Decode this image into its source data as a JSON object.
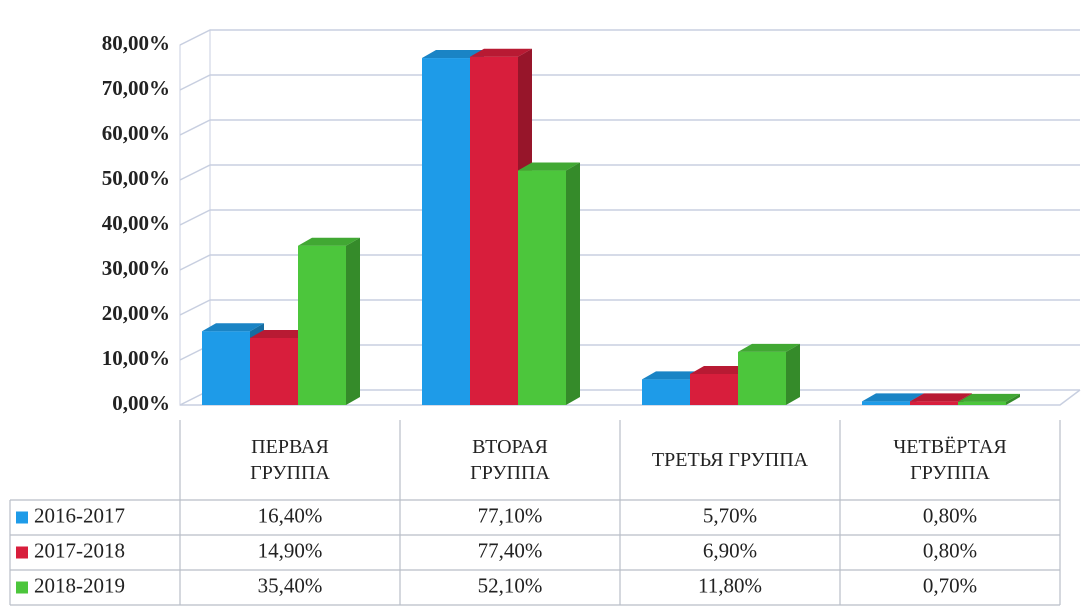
{
  "chart_data": {
    "type": "bar3d",
    "categories": [
      "ПЕРВАЯ ГРУППА",
      "ВТОРАЯ ГРУППА",
      "ТРЕТЬЯ ГРУППА",
      "ЧЕТВЁРТАЯ ГРУППА"
    ],
    "series": [
      {
        "name": "2016-2017",
        "color": "#1e9be8",
        "values": [
          16.4,
          77.1,
          5.7,
          0.8
        ],
        "value_labels": [
          "16,40%",
          "77,10%",
          "5,70%",
          "0,80%"
        ]
      },
      {
        "name": "2017-2018",
        "color": "#d81e3c",
        "values": [
          14.9,
          77.4,
          6.9,
          0.8
        ],
        "value_labels": [
          "14,90%",
          "77,40%",
          "6,90%",
          "0,80%"
        ]
      },
      {
        "name": "2018-2019",
        "color": "#4cc63c",
        "values": [
          35.4,
          52.1,
          11.8,
          0.7
        ],
        "value_labels": [
          "35,40%",
          "52,10%",
          "11,80%",
          "0,70%"
        ]
      }
    ],
    "ylim": [
      0,
      80
    ],
    "yticks": [
      {
        "value": 0,
        "label": "0,00%"
      },
      {
        "value": 10,
        "label": "10,00%"
      },
      {
        "value": 20,
        "label": "20,00%"
      },
      {
        "value": 30,
        "label": "30,00%"
      },
      {
        "value": 40,
        "label": "40,00%"
      },
      {
        "value": 50,
        "label": "50,00%"
      },
      {
        "value": 60,
        "label": "60,00%"
      },
      {
        "value": 70,
        "label": "70,00%"
      },
      {
        "value": 80,
        "label": "80,00%"
      }
    ],
    "grid": true
  }
}
